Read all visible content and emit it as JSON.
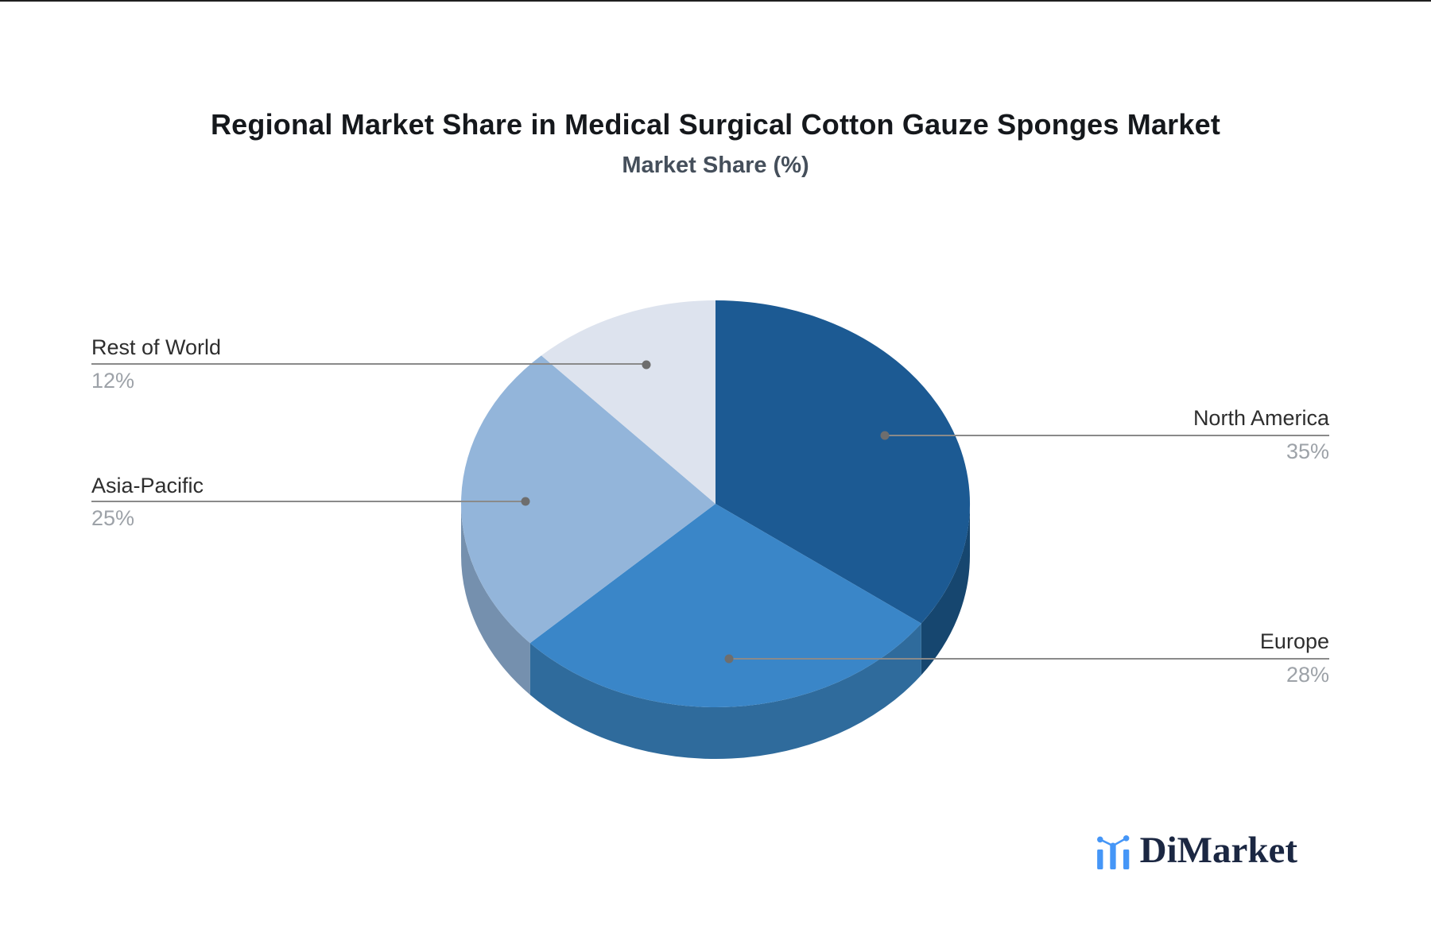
{
  "header": {
    "title": "Regional Market Share in Medical Surgical Cotton Gauze Sponges Market",
    "subtitle": "Market Share (%)"
  },
  "chart_data": {
    "type": "pie",
    "style": "3d",
    "title": "Regional Market Share in Medical Surgical Cotton Gauze Sponges Market",
    "subtitle": "Market Share (%)",
    "unit": "%",
    "total": 100,
    "start_angle_deg": 0,
    "clockwise": true,
    "legend_position": "callout-labels",
    "slices": [
      {
        "label": "North America",
        "value": 35,
        "display": "35%",
        "color": "#1C5A93",
        "side_color": "#16466F",
        "label_side": "right"
      },
      {
        "label": "Europe",
        "value": 28,
        "display": "28%",
        "color": "#3A86C8",
        "side_color": "#2F6B9C",
        "label_side": "right"
      },
      {
        "label": "Asia-Pacific",
        "value": 25,
        "display": "25%",
        "color": "#93B5DA",
        "side_color": "#7590AE",
        "label_side": "left"
      },
      {
        "label": "Rest of World",
        "value": 12,
        "display": "12%",
        "color": "#DDE3EE",
        "side_color": "#B9C3D5",
        "label_side": "left"
      }
    ]
  },
  "callouts": {
    "line_color": "#8A8A8A",
    "dot_color": "#6E6E6E",
    "label_color": "#2E2E2E",
    "value_color": "#9DA2A8"
  },
  "brand": {
    "name": "DiMarket",
    "accent_color": "#4596F7",
    "text_color": "#1B2742",
    "icon": "bar-line-chart-logo-icon"
  }
}
